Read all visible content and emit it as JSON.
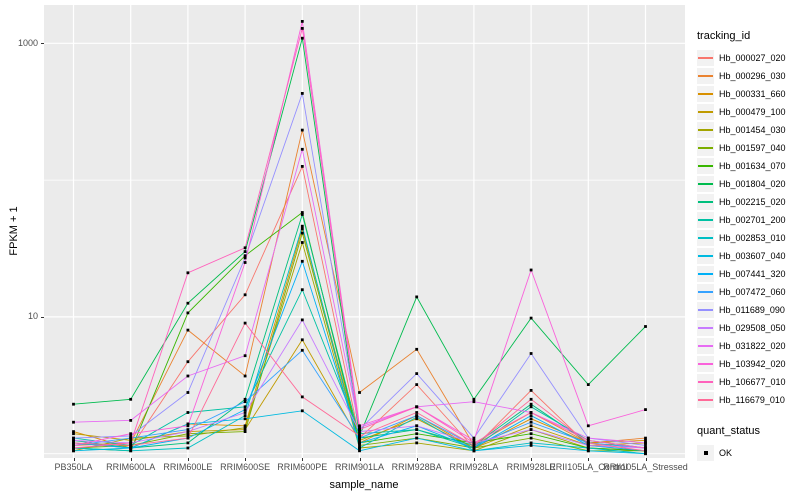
{
  "chart_data": {
    "type": "line",
    "title": "",
    "xlabel": "sample_name",
    "ylabel": "FPKM + 1",
    "y_scale": "log10",
    "ylim": [
      0.93,
      1905
    ],
    "grid": "on",
    "legend_position": "right",
    "y_ticks": [
      {
        "value": 10,
        "label": "10"
      },
      {
        "value": 1000,
        "label": "1000"
      }
    ],
    "y_minor": [
      1,
      100
    ],
    "categories": [
      "PB350LA",
      "RRIM600LA",
      "RRIM600LE",
      "RRIM600SE",
      "RRIM600PE",
      "RRIM901LA",
      "RRIM928BA",
      "RRIM928LA",
      "RRIM928LE",
      "RRII105LA_Control",
      "RRII105LA_Stressed"
    ],
    "legend_title": "tracking_id",
    "series": [
      {
        "name": "Hb_000027_020",
        "color": "#F8766D",
        "values": [
          1.2,
          1.1,
          4.7,
          14.5,
          126,
          1.3,
          3.2,
          1.1,
          2.9,
          1.15,
          1.05
        ]
      },
      {
        "name": "Hb_000296_030",
        "color": "#EA8331",
        "values": [
          1.15,
          1.2,
          8.0,
          3.7,
          232,
          2.8,
          5.8,
          1.15,
          2.0,
          1.2,
          1.3
        ]
      },
      {
        "name": "Hb_000331_660",
        "color": "#D89000",
        "values": [
          1.45,
          1.1,
          1.65,
          1.6,
          44,
          1.2,
          1.9,
          1.1,
          1.8,
          1.2,
          1.25
        ]
      },
      {
        "name": "Hb_000479_100",
        "color": "#C09B00",
        "values": [
          1.4,
          1.25,
          1.45,
          1.5,
          6.8,
          1.25,
          1.8,
          1.1,
          1.6,
          1.15,
          1.2
        ]
      },
      {
        "name": "Hb_001454_030",
        "color": "#A3A500",
        "values": [
          1.05,
          1.3,
          1.35,
          1.55,
          35,
          1.1,
          1.2,
          1.05,
          1.5,
          1.1,
          1.05
        ]
      },
      {
        "name": "Hb_001597_040",
        "color": "#7CAE00",
        "values": [
          1.1,
          1.15,
          1.4,
          1.45,
          41,
          1.15,
          1.3,
          1.1,
          1.3,
          1.05,
          1.05
        ]
      },
      {
        "name": "Hb_001634_070",
        "color": "#39B600",
        "values": [
          1.1,
          1.05,
          10.7,
          28,
          58,
          1.2,
          1.4,
          1.2,
          1.4,
          1.1,
          1.05
        ]
      },
      {
        "name": "Hb_001804_020",
        "color": "#00BB4E",
        "values": [
          2.3,
          2.5,
          12.6,
          30,
          1090,
          1.35,
          14,
          2.5,
          9.8,
          3.2,
          8.5
        ]
      },
      {
        "name": "Hb_002215_020",
        "color": "#00BF7D",
        "values": [
          1.25,
          1.1,
          1.2,
          2.5,
          56,
          1.3,
          1.5,
          1.15,
          2.3,
          1.2,
          1.1
        ]
      },
      {
        "name": "Hb_002701_200",
        "color": "#00C1A3",
        "values": [
          1.3,
          1.15,
          2.0,
          2.2,
          15.8,
          1.4,
          1.5,
          1.1,
          2.2,
          1.25,
          1.1
        ]
      },
      {
        "name": "Hb_002853_010",
        "color": "#00BFC4",
        "values": [
          1.1,
          1.05,
          1.1,
          1.9,
          46,
          1.1,
          1.85,
          1.05,
          1.2,
          1.1,
          1.0
        ]
      },
      {
        "name": "Hb_003607_040",
        "color": "#00BAE0",
        "values": [
          1.05,
          1.1,
          1.65,
          1.8,
          2.06,
          1.05,
          1.3,
          1.05,
          1.15,
          1.05,
          1.0
        ]
      },
      {
        "name": "Hb_007441_320",
        "color": "#00B0F6",
        "values": [
          1.2,
          1.1,
          1.3,
          2.1,
          25.5,
          1.2,
          1.6,
          1.1,
          1.9,
          1.15,
          1.05
        ]
      },
      {
        "name": "Hb_007472_060",
        "color": "#35A2FF",
        "values": [
          1.15,
          1.3,
          1.5,
          2.4,
          5.7,
          1.3,
          1.9,
          1.15,
          1.7,
          1.2,
          1.1
        ]
      },
      {
        "name": "Hb_011689_090",
        "color": "#9590FF",
        "values": [
          1.3,
          1.35,
          2.8,
          27,
          430,
          1.5,
          3.85,
          1.3,
          5.4,
          1.3,
          1.15
        ]
      },
      {
        "name": "Hb_029508_050",
        "color": "#C77CFF",
        "values": [
          1.25,
          1.2,
          1.45,
          2.0,
          9.5,
          1.45,
          1.6,
          1.2,
          1.5,
          1.15,
          1.1
        ]
      },
      {
        "name": "Hb_031822_020",
        "color": "#E76BF3",
        "values": [
          1.7,
          1.75,
          3.7,
          5.2,
          168,
          1.55,
          2.2,
          2.4,
          2.0,
          1.3,
          1.2
        ]
      },
      {
        "name": "Hb_103942_020",
        "color": "#FA62DB",
        "values": [
          1.15,
          1.4,
          1.6,
          25,
          1445,
          1.6,
          2.2,
          1.25,
          22,
          1.6,
          2.1
        ]
      },
      {
        "name": "Hb_106677_010",
        "color": "#FF62BC",
        "values": [
          1.1,
          1.2,
          21,
          32,
          1285,
          1.5,
          2.2,
          1.2,
          2.0,
          1.25,
          1.1
        ]
      },
      {
        "name": "Hb_116679_010",
        "color": "#FF6A98",
        "values": [
          1.2,
          1.15,
          1.3,
          9,
          2.6,
          1.35,
          2.0,
          1.15,
          2.5,
          1.2,
          1.05
        ]
      }
    ],
    "legend2": {
      "title": "quant_status",
      "items": [
        {
          "label": "OK"
        }
      ]
    },
    "colors": {
      "panel_bg": "#EBEBEB",
      "grid": "#FFFFFF",
      "point": "#000000",
      "tick_text": "#4D4D4D",
      "legend_key_bg": "#F2F2F2"
    }
  }
}
